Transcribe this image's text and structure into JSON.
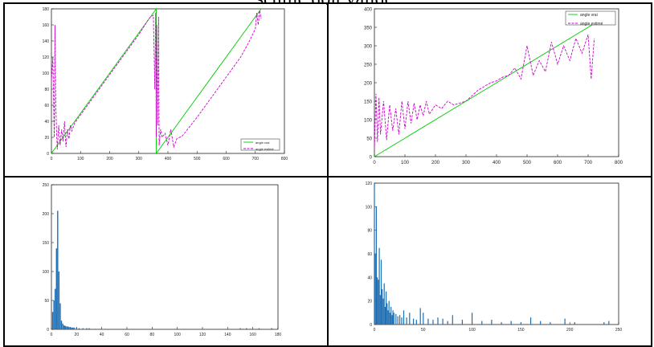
{
  "caption_text": "seuille doit valide.",
  "chart_data": [
    {
      "type": "line",
      "title": "",
      "xlim": [
        0,
        800
      ],
      "ylim": [
        0,
        180
      ],
      "xticks": [
        0,
        100,
        200,
        300,
        400,
        500,
        600,
        700,
        800
      ],
      "yticks": [
        0,
        20,
        40,
        60,
        80,
        100,
        120,
        140,
        160,
        180
      ],
      "legend_position": "bottom-right",
      "series": [
        {
          "name": "angle vrai",
          "color": "#00cc00",
          "dash": "solid",
          "x": [
            0,
            360,
            360,
            720
          ],
          "y": [
            0,
            180,
            0,
            180
          ]
        },
        {
          "name": "angle estimé",
          "color": "#cc00cc",
          "dash": "dashed",
          "x": [
            0,
            5,
            10,
            12,
            15,
            18,
            20,
            25,
            30,
            35,
            40,
            45,
            50,
            55,
            60,
            65,
            70,
            80,
            100,
            150,
            200,
            250,
            300,
            330,
            340,
            350,
            355,
            358,
            360,
            362,
            365,
            368,
            370,
            375,
            380,
            390,
            400,
            410,
            420,
            430,
            440,
            450,
            500,
            550,
            600,
            650,
            680,
            700,
            705,
            710,
            715,
            720
          ],
          "y": [
            90,
            120,
            20,
            160,
            60,
            25,
            5,
            35,
            10,
            30,
            15,
            40,
            8,
            30,
            18,
            35,
            28,
            38,
            48,
            73,
            98,
            123,
            148,
            165,
            170,
            172,
            80,
            175,
            20,
            160,
            35,
            170,
            10,
            30,
            20,
            25,
            10,
            30,
            8,
            18,
            20,
            22,
            45,
            70,
            95,
            120,
            140,
            155,
            175,
            160,
            178,
            168
          ]
        }
      ]
    },
    {
      "type": "line",
      "title": "",
      "xlim": [
        0,
        800
      ],
      "ylim": [
        0,
        400
      ],
      "xticks": [
        0,
        100,
        200,
        300,
        400,
        500,
        600,
        700,
        800
      ],
      "yticks": [
        0,
        50,
        100,
        150,
        200,
        250,
        300,
        350,
        400
      ],
      "legend_position": "top-right",
      "series": [
        {
          "name": "angle vrai",
          "color": "#00cc00",
          "dash": "solid",
          "x": [
            0,
            720
          ],
          "y": [
            0,
            360
          ]
        },
        {
          "name": "angle estimé",
          "color": "#cc00cc",
          "dash": "dashed",
          "x": [
            0,
            5,
            10,
            15,
            20,
            30,
            40,
            50,
            60,
            70,
            80,
            90,
            100,
            110,
            120,
            130,
            140,
            150,
            160,
            170,
            180,
            200,
            220,
            240,
            260,
            280,
            300,
            320,
            340,
            360,
            380,
            400,
            420,
            440,
            460,
            480,
            500,
            520,
            540,
            560,
            580,
            600,
            620,
            640,
            660,
            680,
            700,
            710,
            720
          ],
          "y": [
            20,
            170,
            40,
            160,
            60,
            150,
            45,
            140,
            70,
            130,
            60,
            150,
            75,
            150,
            90,
            145,
            100,
            140,
            110,
            150,
            115,
            140,
            130,
            150,
            140,
            145,
            150,
            165,
            180,
            190,
            200,
            205,
            215,
            220,
            240,
            210,
            300,
            220,
            260,
            230,
            310,
            250,
            300,
            260,
            320,
            280,
            330,
            210,
            320
          ]
        }
      ]
    },
    {
      "type": "bar",
      "title": "",
      "xlim": [
        0,
        180
      ],
      "ylim": [
        0,
        250
      ],
      "xticks": [
        0,
        20,
        40,
        60,
        80,
        100,
        120,
        140,
        160,
        180
      ],
      "yticks": [
        0,
        50,
        100,
        150,
        200,
        250
      ],
      "bar_color": "#1f6fb4",
      "x": [
        1,
        2,
        3,
        4,
        5,
        6,
        7,
        8,
        9,
        10,
        11,
        12,
        13,
        14,
        15,
        16,
        17,
        18,
        20,
        22,
        25,
        28,
        30,
        35,
        150,
        152,
        155,
        158,
        165,
        175
      ],
      "y": [
        30,
        50,
        70,
        140,
        205,
        100,
        45,
        15,
        10,
        7,
        6,
        5,
        5,
        4,
        4,
        3,
        3,
        3,
        3,
        2,
        2,
        2,
        2,
        1,
        2,
        1,
        2,
        1,
        2,
        2
      ]
    },
    {
      "type": "bar",
      "title": "",
      "xlim": [
        0,
        250
      ],
      "ylim": [
        0,
        120
      ],
      "xticks": [
        0,
        50,
        100,
        150,
        200,
        250
      ],
      "yticks": [
        0,
        20,
        40,
        60,
        80,
        100,
        120
      ],
      "bar_color": "#1f6fb4",
      "x": [
        0,
        1,
        2,
        3,
        4,
        5,
        6,
        7,
        8,
        9,
        10,
        11,
        12,
        13,
        14,
        15,
        16,
        17,
        18,
        19,
        20,
        22,
        24,
        26,
        28,
        30,
        33,
        36,
        40,
        43,
        47,
        50,
        55,
        60,
        65,
        70,
        75,
        80,
        90,
        100,
        110,
        120,
        130,
        140,
        150,
        160,
        170,
        180,
        195,
        205,
        235,
        240
      ],
      "y": [
        120,
        60,
        100,
        40,
        38,
        65,
        25,
        55,
        30,
        22,
        35,
        15,
        28,
        18,
        12,
        20,
        10,
        15,
        8,
        12,
        10,
        9,
        7,
        8,
        6,
        12,
        6,
        10,
        5,
        4,
        14,
        10,
        5,
        4,
        6,
        5,
        3,
        8,
        4,
        10,
        3,
        4,
        2,
        3,
        2,
        6,
        3,
        2,
        5,
        2,
        2,
        3
      ]
    }
  ]
}
